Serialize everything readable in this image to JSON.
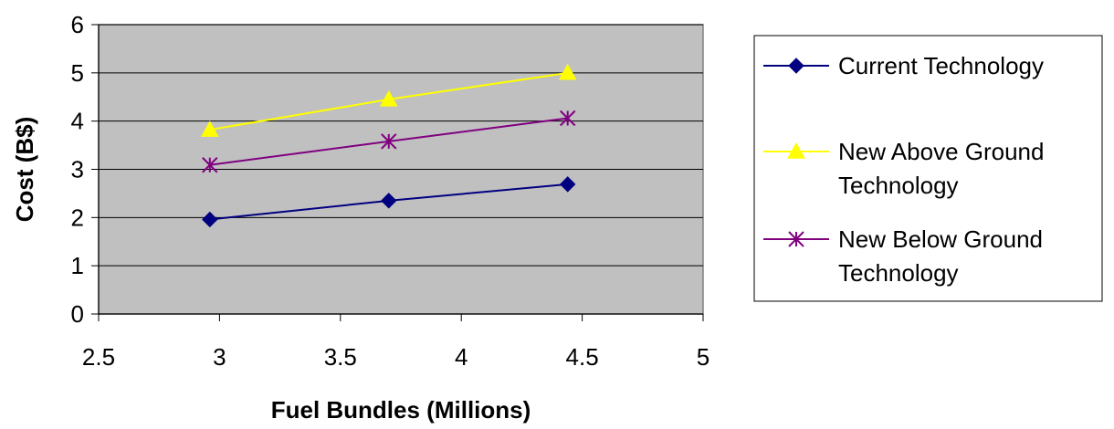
{
  "chart_data": {
    "type": "line",
    "title": "",
    "xlabel": "Fuel Bundles (Millions)",
    "ylabel": "Cost  (B$)",
    "xlim": [
      2.5,
      5
    ],
    "ylim": [
      0,
      6
    ],
    "x_ticks": [
      "2.5",
      "3",
      "3.5",
      "4",
      "4.5",
      "5"
    ],
    "y_ticks": [
      "0",
      "1",
      "2",
      "3",
      "4",
      "5",
      "6"
    ],
    "grid": "horizontal",
    "plot_background": "#c0c0c0",
    "legend_position": "right",
    "series": [
      {
        "name": "Current Technology",
        "legend_lines": [
          "Current Technology"
        ],
        "marker": "diamond",
        "color": "#000080",
        "x": [
          2.96,
          3.7,
          4.44
        ],
        "values": [
          1.96,
          2.35,
          2.69
        ]
      },
      {
        "name": "New Above Ground Technology",
        "legend_lines": [
          "New Above Ground",
          "Technology"
        ],
        "marker": "triangle",
        "color": "#ffff00",
        "x": [
          2.96,
          3.7,
          4.44
        ],
        "values": [
          3.82,
          4.45,
          5.0
        ]
      },
      {
        "name": "New Below Ground Technology",
        "legend_lines": [
          "New Below Ground",
          "Technology"
        ],
        "marker": "asterisk",
        "color": "#800080",
        "x": [
          2.96,
          3.7,
          4.44
        ],
        "values": [
          3.09,
          3.58,
          4.06
        ]
      }
    ]
  }
}
